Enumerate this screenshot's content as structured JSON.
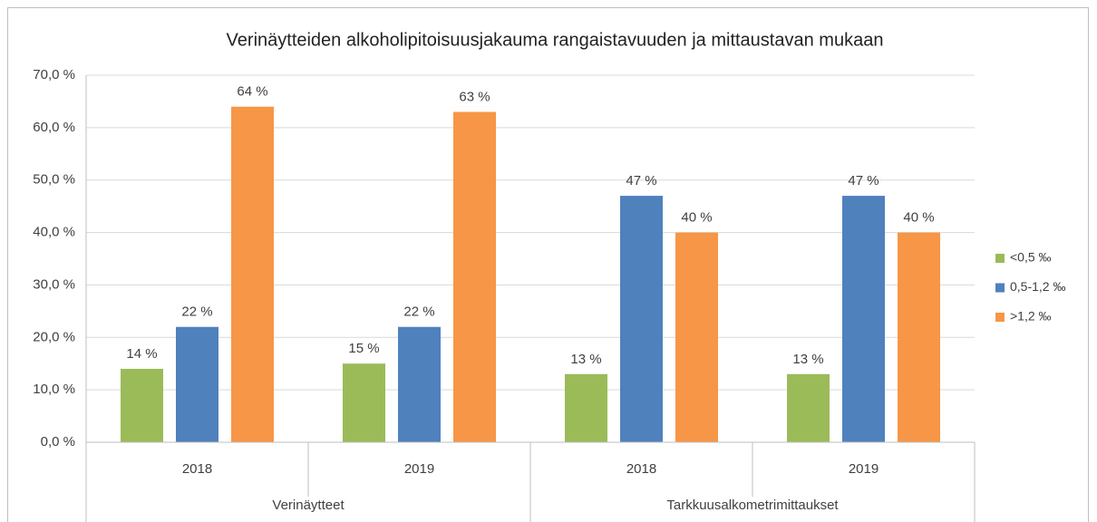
{
  "chart_data": {
    "type": "bar",
    "title": "Verinäytteiden alkoholipitoisuusjakauma rangaistavuuden ja mittaustavan mukaan",
    "groups": [
      {
        "name": "Verinäytteet",
        "categories": [
          "2018",
          "2019"
        ]
      },
      {
        "name": "Tarkkuusalkometrimittaukset",
        "categories": [
          "2018",
          "2019"
        ]
      }
    ],
    "series": [
      {
        "name": "<0,5 ‰",
        "color": "#9bbb59",
        "values": [
          14,
          15,
          13,
          13
        ],
        "value_labels": [
          "14 %",
          "15 %",
          "13 %",
          "13 %"
        ]
      },
      {
        "name": "0,5-1,2 ‰",
        "color": "#4f81bd",
        "values": [
          22,
          22,
          47,
          47
        ],
        "value_labels": [
          "22 %",
          "22 %",
          "47 %",
          "47 %"
        ]
      },
      {
        "name": ">1,2 ‰",
        "color": "#f79646",
        "values": [
          64,
          63,
          40,
          40
        ],
        "value_labels": [
          "64 %",
          "63 %",
          "40 %",
          "40 %"
        ]
      }
    ],
    "ylim": [
      0,
      70
    ],
    "yticks": [
      {
        "value": 0,
        "label": "0,0 %"
      },
      {
        "value": 10,
        "label": "10,0 %"
      },
      {
        "value": 20,
        "label": "20,0 %"
      },
      {
        "value": 30,
        "label": "30,0 %"
      },
      {
        "value": 40,
        "label": "40,0 %"
      },
      {
        "value": 50,
        "label": "50,0 %"
      },
      {
        "value": 60,
        "label": "60,0 %"
      },
      {
        "value": 70,
        "label": "70,0 %"
      }
    ],
    "grid": true,
    "legend": "right"
  }
}
